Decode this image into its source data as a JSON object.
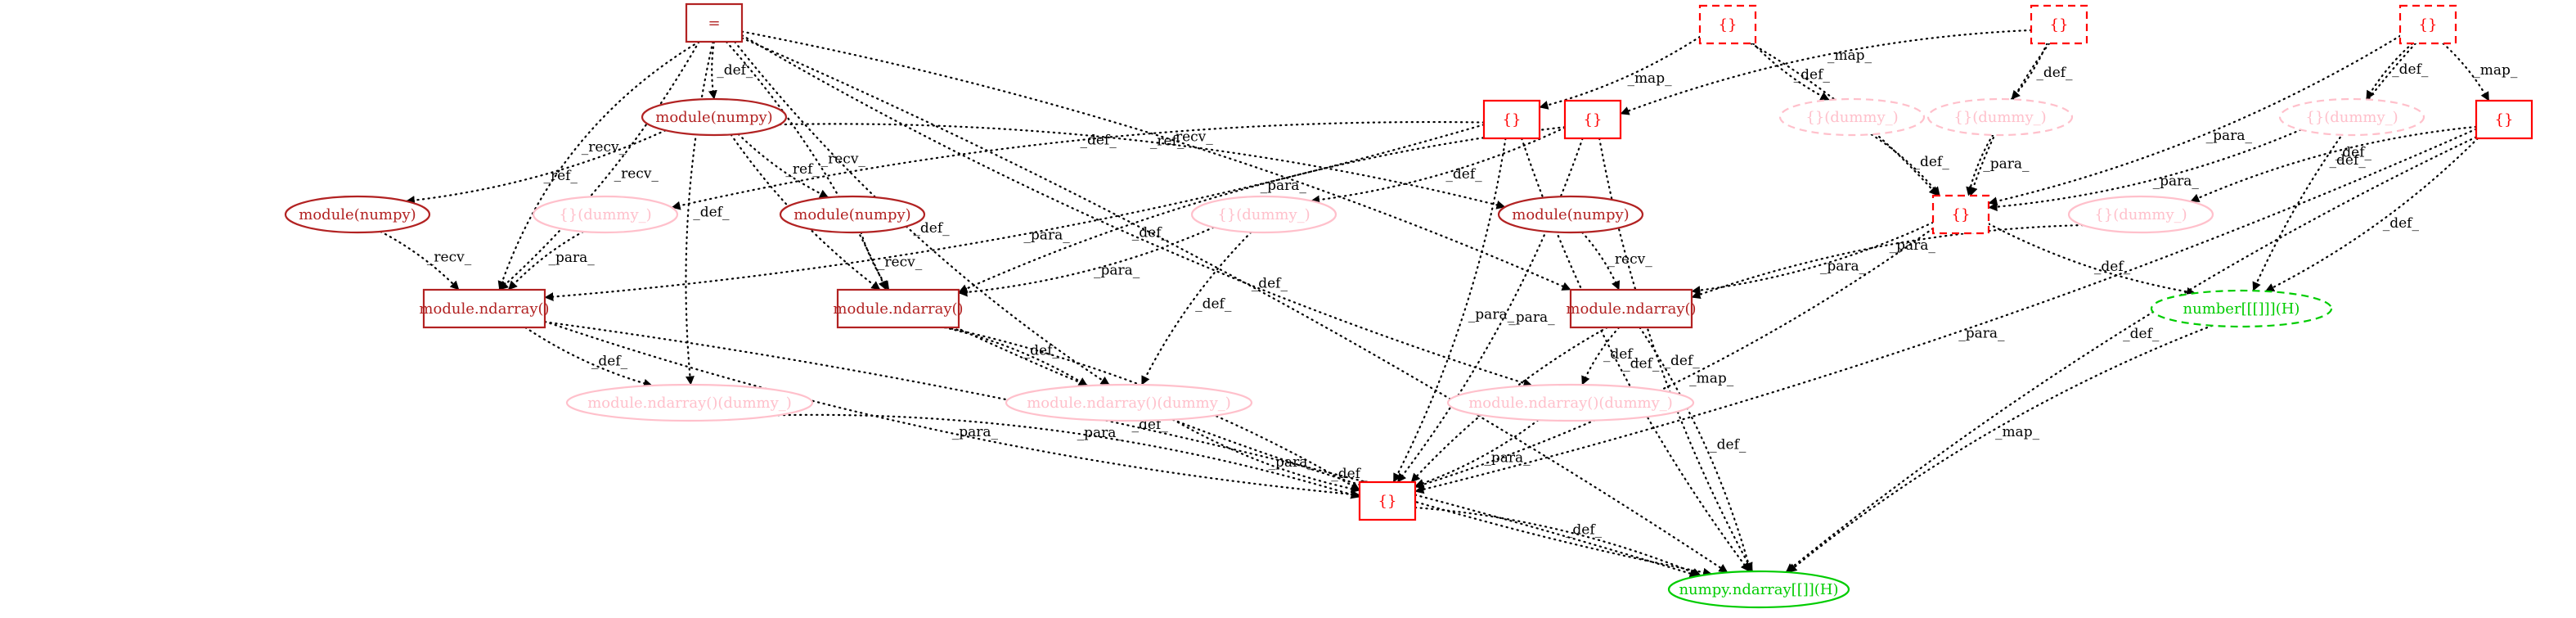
{
  "nodes": [
    {
      "id": "assign",
      "label": "=",
      "shape": "box",
      "style": "solid",
      "color": "#b22222"
    },
    {
      "id": "mod_top",
      "label": "module(numpy)",
      "shape": "ellipse",
      "style": "solid",
      "color": "#b22222"
    },
    {
      "id": "mod_l",
      "label": "module(numpy)",
      "shape": "ellipse",
      "style": "solid",
      "color": "#b22222"
    },
    {
      "id": "mod_m",
      "label": "module(numpy)",
      "shape": "ellipse",
      "style": "solid",
      "color": "#b22222"
    },
    {
      "id": "mod_r",
      "label": "module(numpy)",
      "shape": "ellipse",
      "style": "solid",
      "color": "#b22222"
    },
    {
      "id": "dummy_a",
      "label": "{}(dummy_)",
      "shape": "ellipse",
      "style": "solid",
      "color": "#ffc0cb"
    },
    {
      "id": "dummy_b",
      "label": "{}(dummy_)",
      "shape": "ellipse",
      "style": "solid",
      "color": "#ffc0cb"
    },
    {
      "id": "dummy_c",
      "label": "{}(dummy_)",
      "shape": "ellipse",
      "style": "dashed",
      "color": "#ffc0cb"
    },
    {
      "id": "dummy_d",
      "label": "{}(dummy_)",
      "shape": "ellipse",
      "style": "dashed",
      "color": "#ffc0cb"
    },
    {
      "id": "dummy_e",
      "label": "{}(dummy_)",
      "shape": "ellipse",
      "style": "dashed",
      "color": "#ffc0cb"
    },
    {
      "id": "dummy_f",
      "label": "{}(dummy_)",
      "shape": "ellipse",
      "style": "solid",
      "color": "#ffc0cb"
    },
    {
      "id": "dict_a",
      "label": "{}",
      "shape": "box",
      "style": "solid",
      "color": "#ff0000"
    },
    {
      "id": "dict_b",
      "label": "{}",
      "shape": "box",
      "style": "solid",
      "color": "#ff0000"
    },
    {
      "id": "dict_top1",
      "label": "{}",
      "shape": "box",
      "style": "dashed",
      "color": "#ff0000"
    },
    {
      "id": "dict_top2",
      "label": "{}",
      "shape": "box",
      "style": "dashed",
      "color": "#ff0000"
    },
    {
      "id": "dict_top3",
      "label": "{}",
      "shape": "box",
      "style": "dashed",
      "color": "#ff0000"
    },
    {
      "id": "dict_mid",
      "label": "{}",
      "shape": "box",
      "style": "dashed",
      "color": "#ff0000"
    },
    {
      "id": "dict_right",
      "label": "{}",
      "shape": "box",
      "style": "solid",
      "color": "#ff0000"
    },
    {
      "id": "dict_bottom",
      "label": "{}",
      "shape": "box",
      "style": "solid",
      "color": "#ff0000"
    },
    {
      "id": "nd_l",
      "label": "module.ndarray()",
      "shape": "box",
      "style": "solid",
      "color": "#b22222"
    },
    {
      "id": "nd_m",
      "label": "module.ndarray()",
      "shape": "box",
      "style": "solid",
      "color": "#b22222"
    },
    {
      "id": "nd_r",
      "label": "module.ndarray()",
      "shape": "box",
      "style": "solid",
      "color": "#b22222"
    },
    {
      "id": "ndd_l",
      "label": "module.ndarray()(dummy_)",
      "shape": "ellipse",
      "style": "solid",
      "color": "#ffc0cb"
    },
    {
      "id": "ndd_m",
      "label": "module.ndarray()(dummy_)",
      "shape": "ellipse",
      "style": "solid",
      "color": "#ffc0cb"
    },
    {
      "id": "ndd_r",
      "label": "module.ndarray()(dummy_)",
      "shape": "ellipse",
      "style": "solid",
      "color": "#ffc0cb"
    },
    {
      "id": "number",
      "label": "number[[[]]](H)",
      "shape": "ellipse",
      "style": "dashed",
      "color": "#00cc00"
    },
    {
      "id": "numpy_nd",
      "label": "numpy.ndarray[[]](H)",
      "shape": "ellipse",
      "style": "solid",
      "color": "#00cc00"
    }
  ],
  "edges": [
    {
      "from": "assign",
      "to": "mod_top",
      "label": "_def_"
    },
    {
      "from": "assign",
      "to": "nd_l",
      "label": "_recv_"
    },
    {
      "from": "assign",
      "to": "nd_l",
      "label": "_recv_"
    },
    {
      "from": "assign",
      "to": "nd_m",
      "label": "_recv_"
    },
    {
      "from": "assign",
      "to": "ndd_l",
      "label": "_def_"
    },
    {
      "from": "assign",
      "to": "numpy_nd",
      "label": "_def_"
    },
    {
      "from": "assign",
      "to": "ndd_m",
      "label": "_def_"
    },
    {
      "from": "assign",
      "to": "nd_r",
      "label": "_recv_"
    },
    {
      "from": "assign",
      "to": "ndd_r",
      "label": "_def_"
    },
    {
      "from": "mod_top",
      "to": "mod_l",
      "label": "_ref_"
    },
    {
      "from": "mod_top",
      "to": "mod_m",
      "label": "_ref_"
    },
    {
      "from": "mod_top",
      "to": "mod_r",
      "label": "_ref_"
    },
    {
      "from": "mod_top",
      "to": "nd_m",
      "label": "_recv_"
    },
    {
      "from": "mod_l",
      "to": "nd_l",
      "label": "_recv_"
    },
    {
      "from": "mod_m",
      "to": "nd_m",
      "label": "_recv_"
    },
    {
      "from": "mod_r",
      "to": "nd_r",
      "label": "_recv_"
    },
    {
      "from": "dummy_a",
      "to": "nd_l",
      "label": "_para_"
    },
    {
      "from": "dict_a",
      "to": "nd_l",
      "label": "_para_"
    },
    {
      "from": "dict_a",
      "to": "dummy_a",
      "label": "_def_"
    },
    {
      "from": "dict_a",
      "to": "dict_bottom",
      "label": "_para_"
    },
    {
      "from": "dict_a",
      "to": "numpy_nd",
      "label": "_def_"
    },
    {
      "from": "dict_b",
      "to": "dummy_b",
      "label": "_def_"
    },
    {
      "from": "dict_b",
      "to": "nd_m",
      "label": "_para_"
    },
    {
      "from": "dict_b",
      "to": "dict_bottom",
      "label": "_para_"
    },
    {
      "from": "dict_b",
      "to": "numpy_nd",
      "label": "_def_"
    },
    {
      "from": "dummy_b",
      "to": "nd_m",
      "label": "_para_"
    },
    {
      "from": "dummy_b",
      "to": "ndd_m",
      "label": "_def_"
    },
    {
      "from": "dict_top1",
      "to": "dict_a",
      "label": "_map_"
    },
    {
      "from": "dict_top1",
      "to": "dummy_c",
      "label": "_def_"
    },
    {
      "from": "dict_top1",
      "to": "dict_mid",
      "label": "_para_"
    },
    {
      "from": "dict_top2",
      "to": "dict_b",
      "label": "_map_"
    },
    {
      "from": "dict_top2",
      "to": "dummy_d",
      "label": "_def_"
    },
    {
      "from": "dict_top2",
      "to": "dict_mid",
      "label": "_para_"
    },
    {
      "from": "dict_top3",
      "to": "dict_right",
      "label": "_map_"
    },
    {
      "from": "dict_top3",
      "to": "dummy_e",
      "label": "_def_"
    },
    {
      "from": "dict_top3",
      "to": "dict_mid",
      "label": "_para_"
    },
    {
      "from": "dict_top3",
      "to": "number",
      "label": "_def_"
    },
    {
      "from": "dummy_c",
      "to": "dict_mid",
      "label": "_def_"
    },
    {
      "from": "dummy_d",
      "to": "dict_mid",
      "label": "_para_"
    },
    {
      "from": "dummy_e",
      "to": "dict_mid",
      "label": "_para_"
    },
    {
      "from": "dict_right",
      "to": "dummy_f",
      "label": "_def_"
    },
    {
      "from": "dict_right",
      "to": "dict_bottom",
      "label": "_para_"
    },
    {
      "from": "dict_right",
      "to": "numpy_nd",
      "label": "_def_"
    },
    {
      "from": "dict_right",
      "to": "number",
      "label": "_def_"
    },
    {
      "from": "dummy_f",
      "to": "nd_r",
      "label": "_para_"
    },
    {
      "from": "dict_mid",
      "to": "nd_r",
      "label": "_para_"
    },
    {
      "from": "dict_mid",
      "to": "number",
      "label": "_def_"
    },
    {
      "from": "dict_mid",
      "to": "dict_bottom",
      "label": "_map_"
    },
    {
      "from": "nd_l",
      "to": "ndd_l",
      "label": "_def_"
    },
    {
      "from": "nd_l",
      "to": "numpy_nd",
      "label": "_def_"
    },
    {
      "from": "nd_l",
      "to": "dict_bottom",
      "label": "_para_"
    },
    {
      "from": "nd_m",
      "to": "ndd_m",
      "label": "_def_"
    },
    {
      "from": "nd_m",
      "to": "numpy_nd",
      "label": "_def_"
    },
    {
      "from": "nd_m",
      "to": "dict_bottom",
      "label": "_para_"
    },
    {
      "from": "nd_r",
      "to": "ndd_r",
      "label": "_def_"
    },
    {
      "from": "nd_r",
      "to": "numpy_nd",
      "label": "_def_"
    },
    {
      "from": "nd_r",
      "to": "dict_bottom",
      "label": "_para_"
    },
    {
      "from": "ndd_l",
      "to": "dict_bottom",
      "label": "_para_"
    },
    {
      "from": "ndd_m",
      "to": "dict_bottom",
      "label": "_para_"
    },
    {
      "from": "ndd_r",
      "to": "dict_bottom",
      "label": "_para_"
    },
    {
      "from": "number",
      "to": "numpy_nd",
      "label": "_map_"
    },
    {
      "from": "dict_bottom",
      "to": "numpy_nd",
      "label": "_def_"
    }
  ]
}
